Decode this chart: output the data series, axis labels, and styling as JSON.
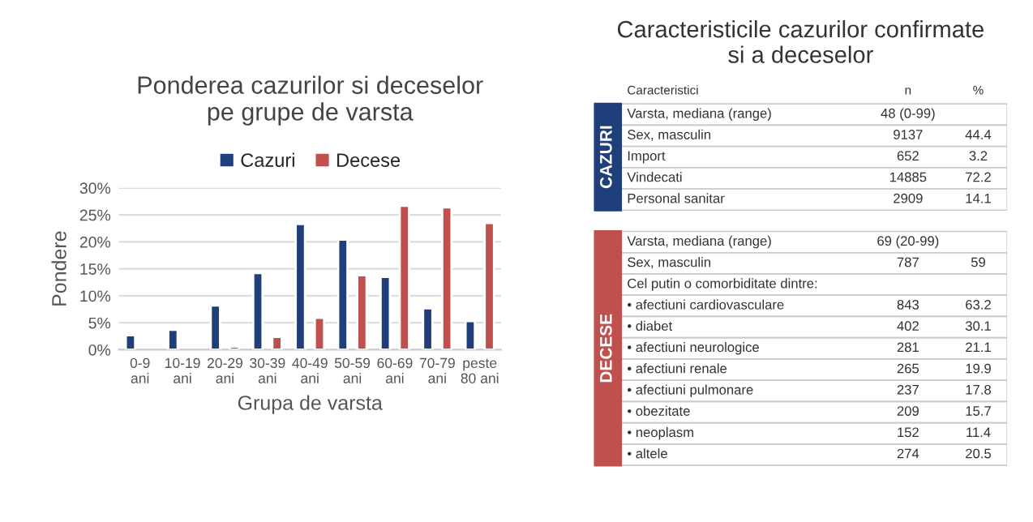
{
  "chart_data": [
    {
      "type": "bar",
      "title": "Ponderea cazurilor si deceselor\npe grupe de varsta",
      "xlabel": "Grupa de varsta",
      "ylabel": "Pondere",
      "categories": [
        "0-9\nani",
        "10-19\nani",
        "20-29\nani",
        "30-39\nani",
        "40-49\nani",
        "50-59\nani",
        "60-69\nani",
        "70-79\nani",
        "peste\n80 ani"
      ],
      "series": [
        {
          "name": "Cazuri",
          "color": "#1f3f7a",
          "values": [
            2.7,
            3.7,
            8.2,
            14.2,
            23.3,
            20.4,
            13.5,
            7.7,
            5.3
          ]
        },
        {
          "name": "Decese",
          "color": "#c0504d",
          "values": [
            null,
            null,
            0.6,
            2.4,
            5.9,
            13.8,
            26.7,
            26.4,
            23.5
          ]
        }
      ],
      "ylim": [
        0,
        30
      ],
      "yticks": [
        {
          "value": 0,
          "label": "0%"
        },
        {
          "value": 5,
          "label": "5%"
        },
        {
          "value": 10,
          "label": "10%"
        },
        {
          "value": 15,
          "label": "15%"
        },
        {
          "value": 20,
          "label": "20%"
        },
        {
          "value": 25,
          "label": "25%"
        },
        {
          "value": 30,
          "label": "30%"
        }
      ],
      "grid": "y",
      "legend": "top"
    },
    {
      "type": "other",
      "title": "Caracteristicile cazurilor confirmate\nsi a deceselor",
      "annotations": [
        "Caracteristici",
        "n",
        "%",
        "CAZURI",
        "Varsta, mediana (range)",
        "48 (0-99)",
        "Sex, masculin",
        "9137",
        "44.4",
        "Import",
        "652",
        "3.2",
        "Vindecati",
        "14885",
        "72.2",
        "Personal sanitar",
        "2909",
        "14.1",
        "DECESE",
        "Varsta, mediana (range)",
        "69 (20-99)",
        "Sex, masculin",
        "787",
        "59",
        "Cel putin o comorbiditate dintre:",
        "• afectiuni cardiovasculare",
        "843",
        "63.2",
        "• diabet",
        "402",
        "30.1",
        "• afectiuni neurologice",
        "281",
        "21.1",
        "• afectiuni renale",
        "265",
        "19.9",
        "• afectiuni pulmonare",
        "237",
        "17.8",
        "• obezitate",
        "209",
        "15.7",
        "• neoplasm",
        "152",
        "11.4",
        "• altele",
        "274",
        "20.5"
      ]
    }
  ]
}
